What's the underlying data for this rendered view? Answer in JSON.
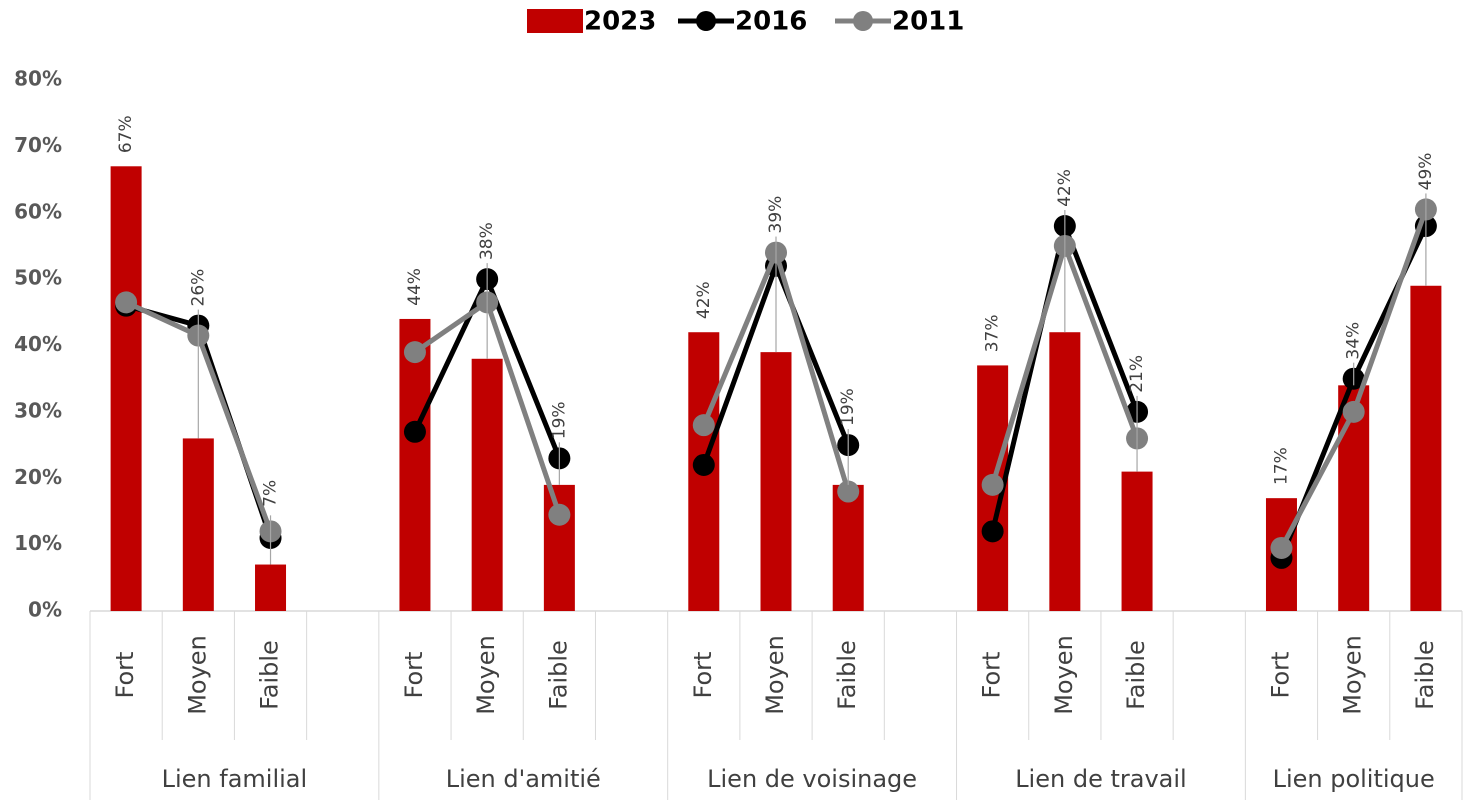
{
  "chart_data": {
    "type": "bar-line",
    "groups": [
      {
        "name": "Lien familial",
        "categories": [
          "Fort",
          "Moyen",
          "Faible",
          null
        ]
      },
      {
        "name": "Lien d'amitié",
        "categories": [
          "Fort",
          "Moyen",
          "Faible",
          null
        ]
      },
      {
        "name": "Lien de voisinage",
        "categories": [
          "Fort",
          "Moyen",
          "Faible",
          null
        ]
      },
      {
        "name": "Lien de travail",
        "categories": [
          "Fort",
          "Moyen",
          "Faible",
          null
        ]
      },
      {
        "name": "Lien politique",
        "categories": [
          "Fort",
          "Moyen",
          "Faible"
        ]
      }
    ],
    "series": [
      {
        "name": "2023",
        "type": "bar",
        "color": "#c00000",
        "values": [
          67,
          26,
          7,
          null,
          44,
          38,
          19,
          null,
          42,
          39,
          19,
          null,
          37,
          42,
          21,
          null,
          17,
          34,
          49
        ],
        "value_labels": [
          "67%",
          "26%",
          "7%",
          null,
          "44%",
          "38%",
          "19%",
          null,
          "42%",
          "39%",
          "19%",
          null,
          "37%",
          "42%",
          "21%",
          null,
          "17%",
          "34%",
          "49%"
        ]
      },
      {
        "name": "2016",
        "type": "line",
        "color": "#000000",
        "values": [
          46,
          43,
          11,
          null,
          27,
          50,
          23,
          null,
          22,
          52,
          25,
          null,
          12,
          58,
          30,
          null,
          8,
          35,
          58
        ]
      },
      {
        "name": "2011",
        "type": "line",
        "color": "#808080",
        "values": [
          46.5,
          41.5,
          12,
          null,
          39,
          46.5,
          14.5,
          null,
          28,
          54,
          18,
          null,
          19,
          55,
          26,
          null,
          9.5,
          30,
          60.5
        ]
      }
    ],
    "ylim": [
      0,
      80
    ],
    "yticks": [
      {
        "value": 0,
        "label": "0%"
      },
      {
        "value": 10,
        "label": "10%"
      },
      {
        "value": 20,
        "label": "20%"
      },
      {
        "value": 30,
        "label": "30%"
      },
      {
        "value": 40,
        "label": "40%"
      },
      {
        "value": 50,
        "label": "50%"
      },
      {
        "value": 60,
        "label": "60%"
      },
      {
        "value": 70,
        "label": "70%"
      },
      {
        "value": 80,
        "label": "80%"
      }
    ],
    "legend": "top"
  }
}
